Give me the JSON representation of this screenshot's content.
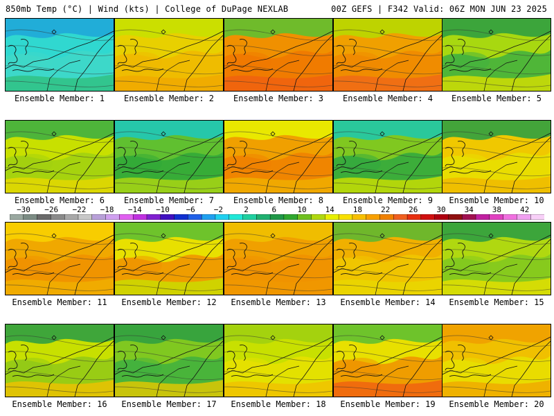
{
  "header": {
    "left_title": "850mb Temp (°C) | Wind (kts) | College of DuPage NEXLAB",
    "right_title": "00Z GEFS | F342 Valid: 06Z MON JUN 23 2025"
  },
  "colorbar": {
    "labels": [
      "−30",
      "−26",
      "−22",
      "−18",
      "−14",
      "−10",
      "−6",
      "−2",
      "2",
      "6",
      "10",
      "14",
      "18",
      "22",
      "26",
      "30",
      "34",
      "38",
      "42"
    ],
    "colors": [
      "#9aa8a0",
      "#7c8c84",
      "#6a6a6a",
      "#8a8a8a",
      "#a8a8a8",
      "#c8c8c8",
      "#b8a0d8",
      "#d0a0f0",
      "#e060f0",
      "#c030e0",
      "#8020d0",
      "#4010c0",
      "#1030d0",
      "#2060e8",
      "#20a0f0",
      "#20d0f0",
      "#20e8d8",
      "#20d0a0",
      "#20b070",
      "#209848",
      "#30a830",
      "#70c020",
      "#b0d810",
      "#e8f000",
      "#f8e000",
      "#f8c000",
      "#f8a000",
      "#f08000",
      "#f06020",
      "#e83010",
      "#d01010",
      "#b00010",
      "#901010",
      "#a01050",
      "#c020a0",
      "#e040c0",
      "#f070e0",
      "#f0a0f0",
      "#f8d0f8"
    ]
  },
  "panels": [
    {
      "label": "Ensemble Member: 1",
      "base": "#30d8d0",
      "mid": "#40d8c8",
      "accent": "#20a8d8",
      "bottom": "#30c080"
    },
    {
      "label": "Ensemble Member: 2",
      "base": "#e8d000",
      "mid": "#f0b800",
      "accent": "#c8e000",
      "bottom": "#f0a800"
    },
    {
      "label": "Ensemble Member: 3",
      "base": "#f09000",
      "mid": "#f07800",
      "accent": "#60c030",
      "bottom": "#f06010"
    },
    {
      "label": "Ensemble Member: 4",
      "base": "#f0a000",
      "mid": "#f08800",
      "accent": "#b8d800",
      "bottom": "#f06818"
    },
    {
      "label": "Ensemble Member: 5",
      "base": "#a8d810",
      "mid": "#40b040",
      "accent": "#30a040",
      "bottom": "#d8e000"
    },
    {
      "label": "Ensemble Member: 6",
      "base": "#c8e000",
      "mid": "#a0d010",
      "accent": "#40b040",
      "bottom": "#e8d800"
    },
    {
      "label": "Ensemble Member: 7",
      "base": "#60c030",
      "mid": "#30a838",
      "accent": "#20c8b8",
      "bottom": "#b0d810"
    },
    {
      "label": "Ensemble Member: 8",
      "base": "#f0a000",
      "mid": "#f08000",
      "accent": "#e8f000",
      "bottom": "#f0b000"
    },
    {
      "label": "Ensemble Member: 9",
      "base": "#80c820",
      "mid": "#30a840",
      "accent": "#20c8a8",
      "bottom": "#d0e000"
    },
    {
      "label": "Ensemble Member: 10",
      "base": "#f0c800",
      "mid": "#e8e000",
      "accent": "#30a040",
      "bottom": "#f0b800"
    },
    {
      "label": "Ensemble Member: 11",
      "base": "#f0a800",
      "mid": "#f09000",
      "accent": "#f8d000",
      "bottom": "#f0b000"
    },
    {
      "label": "Ensemble Member: 12",
      "base": "#e8e000",
      "mid": "#f09000",
      "accent": "#60c030",
      "bottom": "#c8e000"
    },
    {
      "label": "Ensemble Member: 13",
      "base": "#f0a000",
      "mid": "#f09000",
      "accent": "#f0c000",
      "bottom": "#f09800"
    },
    {
      "label": "Ensemble Member: 14",
      "base": "#f0b000",
      "mid": "#f0c800",
      "accent": "#60b830",
      "bottom": "#e8d800"
    },
    {
      "label": "Ensemble Member: 15",
      "base": "#b0d810",
      "mid": "#80c820",
      "accent": "#30a040",
      "bottom": "#e8e000"
    },
    {
      "label": "Ensemble Member: 16",
      "base": "#c8e000",
      "mid": "#90c818",
      "accent": "#30a040",
      "bottom": "#f0c000"
    },
    {
      "label": "Ensemble Member: 17",
      "base": "#80c820",
      "mid": "#40b040",
      "accent": "#30a040",
      "bottom": "#e8c800"
    },
    {
      "label": "Ensemble Member: 18",
      "base": "#c8e000",
      "mid": "#e8e000",
      "accent": "#a0d010",
      "bottom": "#f0c000"
    },
    {
      "label": "Ensemble Member: 19",
      "base": "#e8e000",
      "mid": "#f09000",
      "accent": "#60c030",
      "bottom": "#f06010"
    },
    {
      "label": "Ensemble Member: 20",
      "base": "#f0c000",
      "mid": "#e8e000",
      "accent": "#f0a000",
      "bottom": "#f0a800"
    }
  ]
}
